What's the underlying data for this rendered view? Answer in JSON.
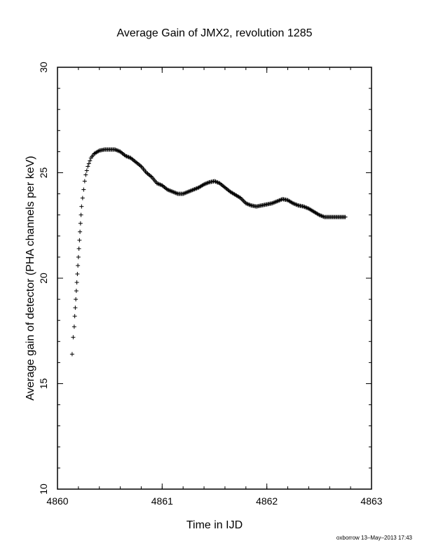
{
  "chart_data": {
    "type": "scatter",
    "title": "Average Gain of JMX2, revolution 1285",
    "xlabel": "Time in IJD",
    "ylabel": "Average gain of detector (PHA channels per keV)",
    "xlim": [
      4860,
      4863
    ],
    "ylim": [
      10,
      30
    ],
    "xticks": [
      4860,
      4861,
      4862,
      4863
    ],
    "yticks": [
      10,
      15,
      20,
      25,
      30
    ],
    "marker": "plus",
    "grid": false,
    "footer": "oxborrow 13–May–2013 17:43",
    "series": [
      {
        "x": [
          4860.14,
          4860.15,
          4860.16,
          4860.165,
          4860.17,
          4860.175,
          4860.18,
          4860.185,
          4860.19,
          4860.195,
          4860.2,
          4860.205,
          4860.21,
          4860.215,
          4860.22,
          4860.225,
          4860.23,
          4860.24,
          4860.25,
          4860.26,
          4860.27,
          4860.29,
          4860.32,
          4860.35,
          4860.4,
          4860.45,
          4860.5,
          4860.55,
          4860.6,
          4860.65,
          4860.7,
          4860.75,
          4860.8,
          4860.85,
          4860.9,
          4860.95,
          4861.0,
          4861.05,
          4861.1,
          4861.15,
          4861.2,
          4861.25,
          4861.3,
          4861.35,
          4861.4,
          4861.45,
          4861.5,
          4861.55,
          4861.6,
          4861.65,
          4861.7,
          4861.75,
          4861.8,
          4861.85,
          4861.9,
          4861.95,
          4862.0,
          4862.05,
          4862.1,
          4862.15,
          4862.2,
          4862.25,
          4862.3,
          4862.35,
          4862.4,
          4862.45,
          4862.5,
          4862.55,
          4862.6,
          4862.65,
          4862.7,
          4862.75
        ],
        "y": [
          16.4,
          17.2,
          17.7,
          18.2,
          18.6,
          19.0,
          19.4,
          19.8,
          20.2,
          20.6,
          21.0,
          21.4,
          21.8,
          22.2,
          22.6,
          23.0,
          23.4,
          23.8,
          24.2,
          24.6,
          24.9,
          25.3,
          25.7,
          25.9,
          26.05,
          26.1,
          26.1,
          26.1,
          26.0,
          25.8,
          25.7,
          25.5,
          25.3,
          25.0,
          24.8,
          24.5,
          24.4,
          24.2,
          24.1,
          24.0,
          24.0,
          24.1,
          24.2,
          24.3,
          24.45,
          24.55,
          24.6,
          24.5,
          24.3,
          24.1,
          23.95,
          23.8,
          23.55,
          23.45,
          23.4,
          23.45,
          23.5,
          23.55,
          23.65,
          23.75,
          23.7,
          23.55,
          23.45,
          23.4,
          23.3,
          23.15,
          23.0,
          22.9,
          22.9,
          22.9,
          22.9,
          22.9
        ]
      }
    ]
  }
}
